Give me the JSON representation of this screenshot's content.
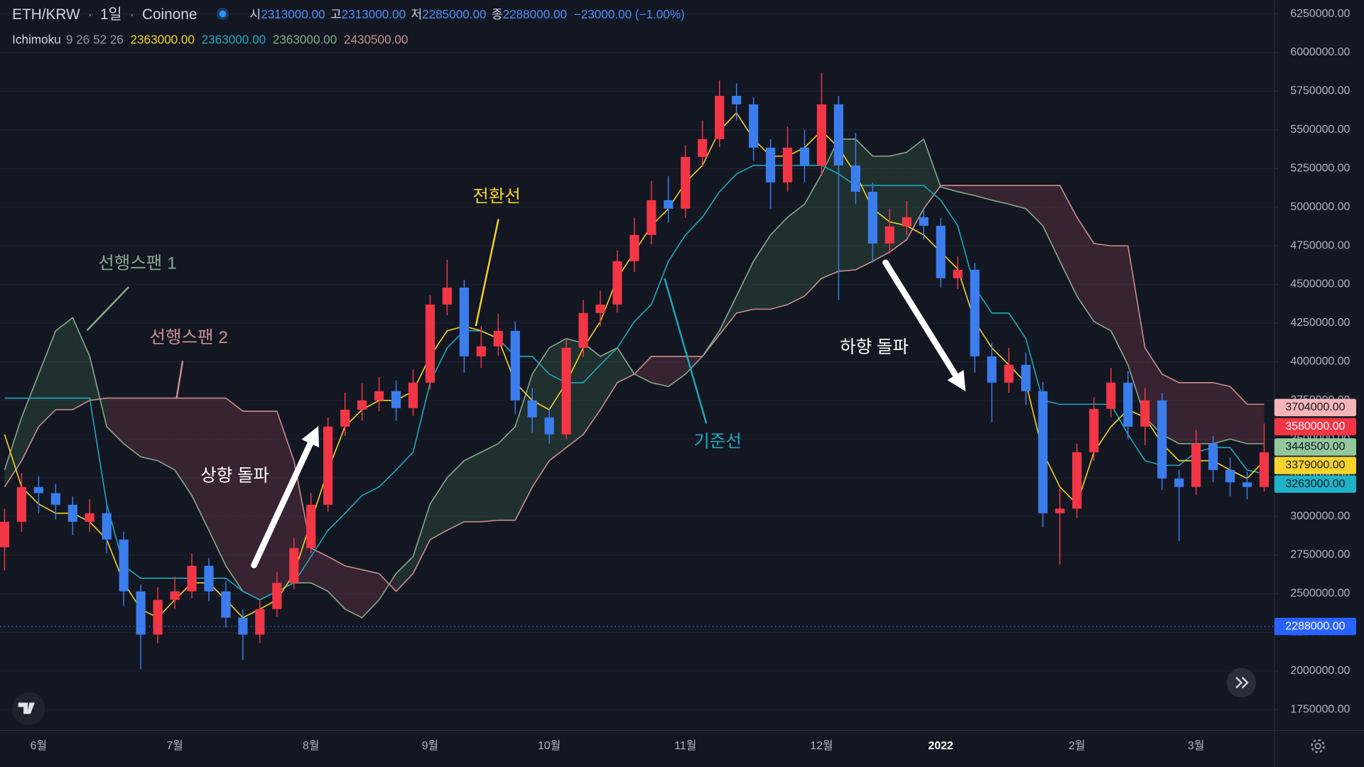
{
  "chart_data": {
    "type": "candlestick",
    "header": {
      "symbol": "ETH/KRW",
      "separator": "·",
      "interval": "1일",
      "exchange": "Coinone",
      "open_label": "시",
      "open": "2313000.00",
      "high_label": "고",
      "high": "2313000.00",
      "low_label": "저",
      "low": "2285000.00",
      "close_label": "종",
      "close": "2288000.00",
      "change": "−23000.00 (−1.00%)"
    },
    "indicator": {
      "name": "Ichimoku",
      "params": "9 26 52 26",
      "values": [
        "2363000.00",
        "2363000.00",
        "2363000.00",
        "2430500.00"
      ]
    },
    "categories": [
      null,
      null,
      "6월",
      null,
      null,
      null,
      null,
      null,
      null,
      null,
      "7월",
      null,
      null,
      null,
      null,
      null,
      null,
      null,
      "8월",
      null,
      null,
      null,
      null,
      null,
      null,
      "9월",
      null,
      null,
      null,
      null,
      null,
      null,
      "10월",
      null,
      null,
      null,
      null,
      null,
      null,
      null,
      "11월",
      null,
      null,
      null,
      null,
      null,
      null,
      null,
      "12월",
      null,
      null,
      null,
      null,
      null,
      null,
      "2022",
      null,
      null,
      null,
      null,
      null,
      null,
      null,
      "2월",
      null,
      null,
      null,
      null,
      null,
      null,
      "3월",
      null,
      null,
      null,
      null
    ],
    "open": [
      2800000,
      2965000,
      3190000,
      3150000,
      3075000,
      2965000,
      3020000,
      2850000,
      2515000,
      2235000,
      2460000,
      2515000,
      2680000,
      2515000,
      2345000,
      2235000,
      2400000,
      2570000,
      2795000,
      3075000,
      3580000,
      3690000,
      3750000,
      3810000,
      3700000,
      3865000,
      4370000,
      4480000,
      4035000,
      4100000,
      4200000,
      3750000,
      3640000,
      3530000,
      4090000,
      4315000,
      4370000,
      4650000,
      4820000,
      5045000,
      4990000,
      5325000,
      5440000,
      5720000,
      5665000,
      5385000,
      5160000,
      5385000,
      5270000,
      5665000,
      5270000,
      5100000,
      4765000,
      4875000,
      4935000,
      4880000,
      4540000,
      4595000,
      4035000,
      3865000,
      3980000,
      3810000,
      3020000,
      3050000,
      3415000,
      3695000,
      3865000,
      3580000,
      3750000,
      3245000,
      3190000,
      3470000,
      3300000,
      3220000,
      3190000
    ],
    "high": [
      3050000,
      3280000,
      3260000,
      3210000,
      3130000,
      3110000,
      3080000,
      2900000,
      2560000,
      2540000,
      2610000,
      2760000,
      2730000,
      2580000,
      2400000,
      2460000,
      2640000,
      2860000,
      3150000,
      3640000,
      3800000,
      3860000,
      3900000,
      3880000,
      3950000,
      4430000,
      4660000,
      4530000,
      4230000,
      4310000,
      4260000,
      3830000,
      3700000,
      4150000,
      4400000,
      4460000,
      4720000,
      4930000,
      5170000,
      5200000,
      5400000,
      5560000,
      5820000,
      5800000,
      5710000,
      5440000,
      5520000,
      5500000,
      5870000,
      5720000,
      5480000,
      5160000,
      4990000,
      5040000,
      4990000,
      4930000,
      4680000,
      4640000,
      4120000,
      4090000,
      4060000,
      3870000,
      3180000,
      3470000,
      3770000,
      3960000,
      3940000,
      3830000,
      3800000,
      3300000,
      3560000,
      3520000,
      3380000,
      3290000,
      3600000
    ],
    "low": [
      2650000,
      2900000,
      3020000,
      2980000,
      2880000,
      2900000,
      2760000,
      2420000,
      2010000,
      2180000,
      2400000,
      2470000,
      2450000,
      2280000,
      2070000,
      2180000,
      2350000,
      2530000,
      2760000,
      3030000,
      3520000,
      3620000,
      3680000,
      3620000,
      3650000,
      3820000,
      4300000,
      3930000,
      3960000,
      4040000,
      3660000,
      3540000,
      3470000,
      3500000,
      4030000,
      4230000,
      4320000,
      4580000,
      4760000,
      4900000,
      4930000,
      5260000,
      5390000,
      5560000,
      5300000,
      4990000,
      5100000,
      5160000,
      5200000,
      4400000,
      5020000,
      4640000,
      4700000,
      4820000,
      4790000,
      4480000,
      4470000,
      3930000,
      3610000,
      3800000,
      3720000,
      2930000,
      2690000,
      2990000,
      3360000,
      3640000,
      3500000,
      3460000,
      3170000,
      2840000,
      3140000,
      3220000,
      3130000,
      3110000,
      3160000
    ],
    "close": [
      2965000,
      3190000,
      3150000,
      3075000,
      2965000,
      3020000,
      2850000,
      2515000,
      2235000,
      2460000,
      2515000,
      2680000,
      2515000,
      2345000,
      2235000,
      2400000,
      2570000,
      2795000,
      3075000,
      3580000,
      3690000,
      3750000,
      3810000,
      3700000,
      3865000,
      4370000,
      4480000,
      4035000,
      4100000,
      4200000,
      3750000,
      3640000,
      3530000,
      4090000,
      4315000,
      4370000,
      4650000,
      4820000,
      5045000,
      4990000,
      5325000,
      5440000,
      5720000,
      5665000,
      5385000,
      5160000,
      5385000,
      5270000,
      5665000,
      5270000,
      5100000,
      4765000,
      4875000,
      4935000,
      4880000,
      4540000,
      4595000,
      4035000,
      3865000,
      3980000,
      3810000,
      3020000,
      3050000,
      3415000,
      3695000,
      3865000,
      3580000,
      3750000,
      3245000,
      3190000,
      3470000,
      3300000,
      3220000,
      3190000,
      3415000
    ],
    "up_color": "#f23645",
    "down_color": "#3b7ded",
    "series": [
      {
        "name": "전환선",
        "color": "#f5d32c",
        "values": [
          3530000,
          3190000,
          3080000,
          3020000,
          3020000,
          2965000,
          2850000,
          2570000,
          2400000,
          2345000,
          2460000,
          2570000,
          2570000,
          2460000,
          2345000,
          2400000,
          2460000,
          2630000,
          2965000,
          3300000,
          3580000,
          3690000,
          3750000,
          3750000,
          3810000,
          4035000,
          4200000,
          4230000,
          4200000,
          4150000,
          3865000,
          3750000,
          3690000,
          3865000,
          4090000,
          4260000,
          4540000,
          4710000,
          4880000,
          4990000,
          5160000,
          5270000,
          5495000,
          5610000,
          5440000,
          5330000,
          5330000,
          5385000,
          5495000,
          5385000,
          5215000,
          4990000,
          4905000,
          4880000,
          4820000,
          4710000,
          4600000,
          4260000,
          4090000,
          3980000,
          3865000,
          3415000,
          3190000,
          3080000,
          3415000,
          3580000,
          3690000,
          3640000,
          3470000,
          3360000,
          3360000,
          3360000,
          3300000,
          3245000,
          3360000
        ]
      },
      {
        "name": "기준선",
        "color": "#1fa7bb",
        "values": [
          3765000,
          3765000,
          3765000,
          3765000,
          3765000,
          3765000,
          3080000,
          2680000,
          2600000,
          2600000,
          2600000,
          2600000,
          2600000,
          2600000,
          2515000,
          2460000,
          2515000,
          2570000,
          2740000,
          2910000,
          3020000,
          3135000,
          3190000,
          3300000,
          3415000,
          3865000,
          4090000,
          4200000,
          4200000,
          4150000,
          4035000,
          4035000,
          3920000,
          3865000,
          3865000,
          3980000,
          4090000,
          4260000,
          4370000,
          4650000,
          4820000,
          4935000,
          5100000,
          5215000,
          5270000,
          5270000,
          5270000,
          5270000,
          5270000,
          5215000,
          5140000,
          5140000,
          5140000,
          5140000,
          5140000,
          5045000,
          4880000,
          4480000,
          4315000,
          4315000,
          4150000,
          3750000,
          3725000,
          3725000,
          3725000,
          3725000,
          3530000,
          3360000,
          3330000,
          3330000,
          3415000,
          3445000,
          3445000,
          3300000,
          3275000
        ]
      },
      {
        "name": "선행스팬 1",
        "color": "#8aa88f",
        "values": [
          3300000,
          3640000,
          3920000,
          4200000,
          4285000,
          4035000,
          3580000,
          3470000,
          3385000,
          3360000,
          3300000,
          3135000,
          2910000,
          2680000,
          2515000,
          2460000,
          2515000,
          2570000,
          2570000,
          2515000,
          2400000,
          2345000,
          2460000,
          2630000,
          2740000,
          3080000,
          3250000,
          3360000,
          3415000,
          3470000,
          3580000,
          3920000,
          4090000,
          4150000,
          4120000,
          4035000,
          4090000,
          3920000,
          3865000,
          3840000,
          3920000,
          4035000,
          4200000,
          4425000,
          4650000,
          4820000,
          4935000,
          5020000,
          5215000,
          5440000,
          5440000,
          5330000,
          5330000,
          5355000,
          5440000,
          5130000,
          5100000,
          5075000,
          5045000,
          5020000,
          4990000,
          4880000,
          4650000,
          4425000,
          4260000,
          4200000,
          3980000,
          3640000,
          3530000,
          3470000,
          3470000,
          3470000,
          3500000,
          3470000,
          3470000
        ]
      },
      {
        "name": "선행스팬 2",
        "color": "#c98e93",
        "values": [
          3190000,
          3360000,
          3580000,
          3690000,
          3690000,
          3750000,
          3765000,
          3765000,
          3765000,
          3765000,
          3765000,
          3765000,
          3765000,
          3765000,
          3680000,
          3680000,
          3680000,
          3360000,
          2795000,
          2740000,
          2680000,
          2655000,
          2630000,
          2515000,
          2630000,
          2850000,
          2910000,
          2965000,
          2965000,
          2975000,
          2975000,
          3190000,
          3360000,
          3445000,
          3530000,
          3690000,
          3865000,
          3920000,
          4035000,
          4035000,
          4035000,
          4035000,
          4175000,
          4315000,
          4340000,
          4340000,
          4370000,
          4425000,
          4540000,
          4585000,
          4595000,
          4650000,
          4710000,
          4790000,
          4990000,
          5140000,
          5140000,
          5140000,
          5140000,
          5140000,
          5140000,
          5140000,
          5140000,
          4935000,
          4765000,
          4750000,
          4750000,
          4090000,
          3920000,
          3865000,
          3865000,
          3865000,
          3840000,
          3725000,
          3725000
        ]
      }
    ],
    "cloud_colors": [
      "rgba(76,140,96,0.22)",
      "rgba(150,70,95,0.28)"
    ],
    "ylim": [
      1615000,
      6340000
    ],
    "yticks": [
      {
        "value": 1750000,
        "label": "1750000.00"
      },
      {
        "value": 2000000,
        "label": "2000000.00"
      },
      {
        "value": 2250000,
        "label": "2250000.00"
      },
      {
        "value": 2500000,
        "label": "2500000.00"
      },
      {
        "value": 2750000,
        "label": "2750000.00"
      },
      {
        "value": 3000000,
        "label": "3000000.00"
      },
      {
        "value": 3250000,
        "label": "3250000.00"
      },
      {
        "value": 3500000,
        "label": "3500000.00"
      },
      {
        "value": 3750000,
        "label": "3750000.00"
      },
      {
        "value": 4000000,
        "label": "4000000.00"
      },
      {
        "value": 4250000,
        "label": "4250000.00"
      },
      {
        "value": 4500000,
        "label": "4500000.00"
      },
      {
        "value": 4750000,
        "label": "4750000.00"
      },
      {
        "value": 5000000,
        "label": "5000000.00"
      },
      {
        "value": 5250000,
        "label": "5250000.00"
      },
      {
        "value": 5500000,
        "label": "5500000.00"
      },
      {
        "value": 5750000,
        "label": "5750000.00"
      },
      {
        "value": 6000000,
        "label": "6000000.00"
      },
      {
        "value": 6250000,
        "label": "6250000.00"
      }
    ],
    "grid": true,
    "price_labels": [
      {
        "value": 3704000,
        "label": "3704000.00",
        "color": "#f5b5b8",
        "text_color": "#131722"
      },
      {
        "value": 3580000,
        "label": "3580000.00",
        "color": "#f23645",
        "text_color": "#ffffff"
      },
      {
        "value": 3448500,
        "label": "3448500.00",
        "color": "#93c89c",
        "text_color": "#131722"
      },
      {
        "value": 3379000,
        "label": "3379000.00",
        "color": "#f5d32c",
        "text_color": "#131722"
      },
      {
        "value": 3263000,
        "label": "3263000.00",
        "color": "#1fb3c8",
        "text_color": "#131722"
      }
    ],
    "last_price": {
      "value": 2288000,
      "label": "2288000.00",
      "color": "#2962ff"
    },
    "annotations": [
      "상향 돌파",
      "하향 돌파"
    ]
  }
}
